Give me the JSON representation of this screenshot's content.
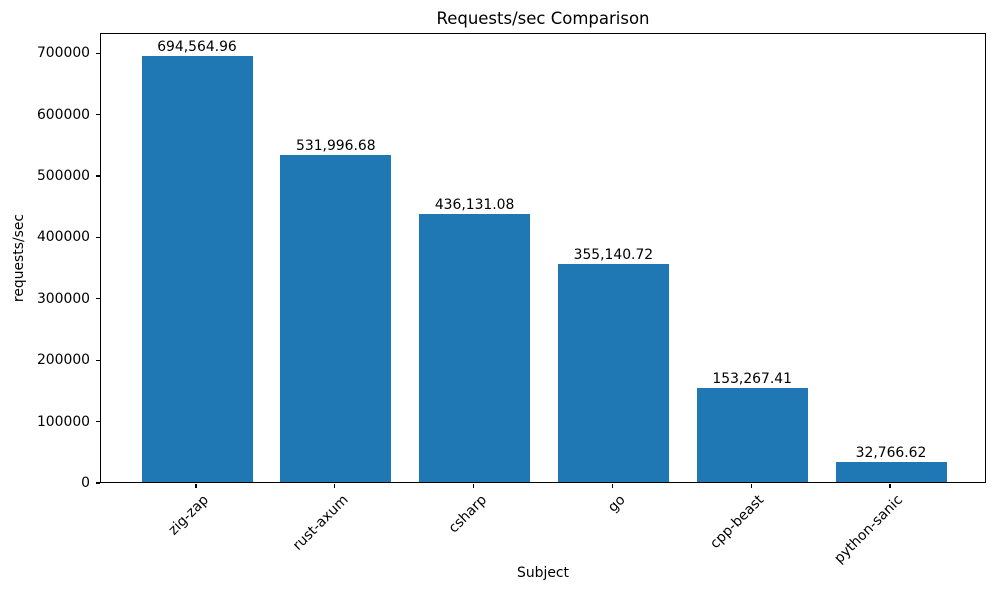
{
  "chart_data": {
    "type": "bar",
    "title": "Requests/sec Comparison",
    "xlabel": "Subject",
    "ylabel": "requests/sec",
    "categories": [
      "zig-zap",
      "rust-axum",
      "csharp",
      "go",
      "cpp-beast",
      "python-sanic"
    ],
    "values": [
      694564.96,
      531996.68,
      436131.08,
      355140.72,
      153267.41,
      32766.62
    ],
    "value_labels": [
      "694,564.96",
      "531,996.68",
      "436,131.08",
      "355,140.72",
      "153,267.41",
      "32,766.62"
    ],
    "yticks": [
      0,
      100000,
      200000,
      300000,
      400000,
      500000,
      600000,
      700000
    ],
    "ylim": [
      0,
      733000
    ],
    "xtick_rotation_deg": 45,
    "bar_color": "#1f77b4",
    "background_color": "#ffffff",
    "spine_color": "#000000",
    "grid": false,
    "legend": false
  }
}
